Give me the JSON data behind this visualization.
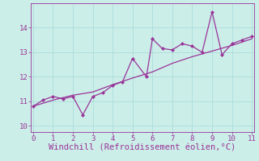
{
  "title": "",
  "xlabel": "Windchill (Refroidissement éolien,°C)",
  "ylabel": "",
  "bg_color": "#cceee8",
  "line_color": "#993399",
  "grid_color": "#aadddd",
  "xlim": [
    -0.1,
    11.1
  ],
  "ylim": [
    9.75,
    15.0
  ],
  "xticks": [
    0,
    1,
    2,
    3,
    4,
    5,
    6,
    7,
    8,
    9,
    10,
    11
  ],
  "yticks": [
    10,
    11,
    12,
    13,
    14
  ],
  "zigzag_x": [
    0,
    0.5,
    1,
    1.5,
    2,
    2.5,
    3,
    3.5,
    4,
    4.5,
    5,
    5.7,
    6,
    6.5,
    7,
    7.5,
    8,
    8.5,
    9,
    9.5,
    10,
    10.5,
    11
  ],
  "zigzag_y": [
    10.8,
    11.05,
    11.2,
    11.1,
    11.2,
    10.45,
    11.2,
    11.35,
    11.65,
    11.8,
    12.75,
    12.0,
    13.55,
    13.15,
    13.1,
    13.35,
    13.25,
    13.0,
    14.65,
    12.9,
    13.35,
    13.5,
    13.65
  ],
  "smooth_x": [
    0,
    1,
    2,
    3,
    4,
    5,
    6,
    7,
    8,
    9,
    10,
    11
  ],
  "smooth_y": [
    10.8,
    11.05,
    11.25,
    11.38,
    11.68,
    11.95,
    12.2,
    12.55,
    12.82,
    13.05,
    13.28,
    13.55
  ],
  "tick_fontsize": 6.5,
  "xlabel_fontsize": 7.5,
  "marker_size": 2.2,
  "linewidth": 0.9
}
